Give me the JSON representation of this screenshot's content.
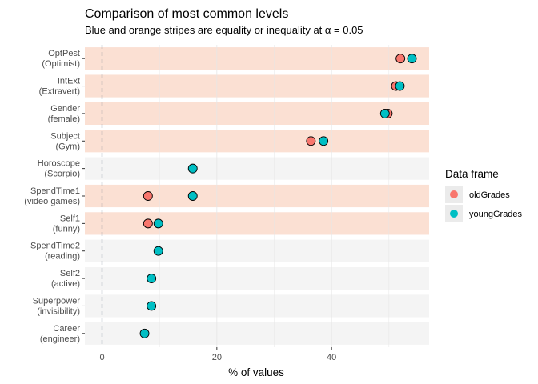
{
  "chart_data": {
    "type": "scatter",
    "title": "Comparison of most common levels",
    "subtitle": "Blue and orange stripes are equality or inequality at α = 0.05",
    "xlabel": "% of values",
    "ylabel": "",
    "xlim": [
      -3,
      57
    ],
    "xticks": [
      0,
      20,
      40
    ],
    "reference_line_x": 0,
    "grid": true,
    "legend": {
      "title": "Data frame",
      "position": "right"
    },
    "colors": {
      "oldGrades": "#F8766D",
      "youngGrades": "#00BFC4",
      "stripe_inequality": "#FBE0D3",
      "stripe_equality": "#F4F4F4",
      "gridline": "#e6e6e6",
      "refline": "#5a6478"
    },
    "series": [
      {
        "name": "oldGrades",
        "color": "#F8766D"
      },
      {
        "name": "youngGrades",
        "color": "#00BFC4"
      }
    ],
    "categories": [
      {
        "line1": "OptPest",
        "line2": "(Optimist)",
        "stripe": "inequality",
        "oldGrades": 52.0,
        "youngGrades": 54.0
      },
      {
        "line1": "IntExt",
        "line2": "(Extravert)",
        "stripe": "inequality",
        "oldGrades": 51.2,
        "youngGrades": 51.9
      },
      {
        "line1": "Gender",
        "line2": "(female)",
        "stripe": "inequality",
        "oldGrades": 49.8,
        "youngGrades": 49.3
      },
      {
        "line1": "Subject",
        "line2": "(Gym)",
        "stripe": "inequality",
        "oldGrades": 36.4,
        "youngGrades": 38.6
      },
      {
        "line1": "Horoscope",
        "line2": "(Scorpio)",
        "stripe": "equality",
        "oldGrades": null,
        "youngGrades": 15.8
      },
      {
        "line1": "SpendTime1",
        "line2": "(video games)",
        "stripe": "inequality",
        "oldGrades": 8.0,
        "youngGrades": 15.8
      },
      {
        "line1": "Self1",
        "line2": "(funny)",
        "stripe": "inequality",
        "oldGrades": 8.0,
        "youngGrades": 9.8
      },
      {
        "line1": "SpendTime2",
        "line2": "(reading)",
        "stripe": "equality",
        "oldGrades": null,
        "youngGrades": 9.8
      },
      {
        "line1": "Self2",
        "line2": "(active)",
        "stripe": "equality",
        "oldGrades": null,
        "youngGrades": 8.6
      },
      {
        "line1": "Superpower",
        "line2": "(invisibility)",
        "stripe": "equality",
        "oldGrades": null,
        "youngGrades": 8.6
      },
      {
        "line1": "Career",
        "line2": "(engineer)",
        "stripe": "equality",
        "oldGrades": null,
        "youngGrades": 7.4
      }
    ]
  }
}
